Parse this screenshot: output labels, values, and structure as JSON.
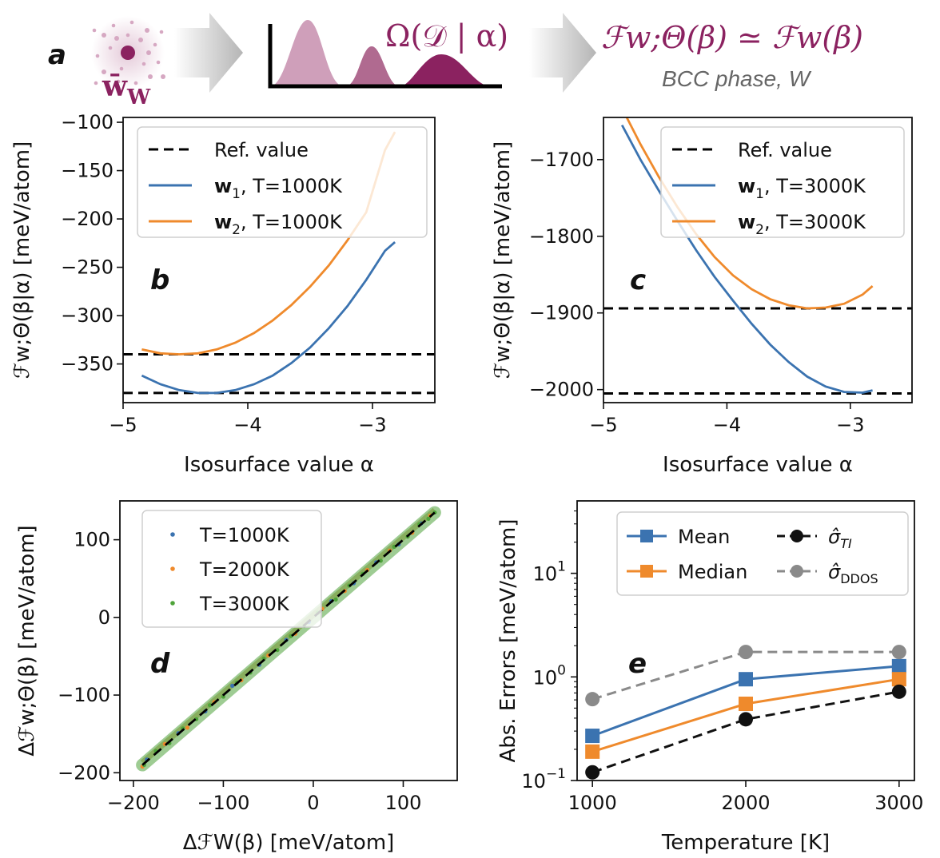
{
  "header": {
    "panel_letter": "a",
    "weights_label": "w̄",
    "weights_subscript": "W",
    "omega_label": "Ω(𝒟 | α)",
    "formula": "ℱw;Θ(β) ≃ ℱw(β)",
    "subtitle": "BCC phase, W",
    "colors": {
      "magenta": "#8b2260",
      "mid": "#b06a90",
      "light": "#cf9fba",
      "arrow": "#cccccc"
    }
  },
  "chart_data": [
    {
      "panel": "b",
      "type": "line",
      "xlabel": "Isosurface value α",
      "ylabel": "ℱw;Θ(β|α) [meV/atom]",
      "xlim": [
        -5.0,
        -2.5
      ],
      "ylim": [
        -390,
        -95
      ],
      "xticks": [
        -5,
        -4,
        -3
      ],
      "xtick_labels": [
        "−5",
        "−4",
        "−3"
      ],
      "yticks": [
        -100,
        -150,
        -200,
        -250,
        -300,
        -350
      ],
      "ytick_labels": [
        "−100",
        "−150",
        "−200",
        "−250",
        "−300",
        "−350"
      ],
      "legend": {
        "position": "top-right",
        "ref_label": "Ref. value"
      },
      "ref_values": [
        -340,
        -380
      ],
      "series": [
        {
          "name": "w1, T=1000K",
          "vector": "w",
          "sub": "1",
          "rest": ", T=1000K",
          "color": "#3b73b0",
          "x": [
            -4.85,
            -4.7,
            -4.55,
            -4.4,
            -4.25,
            -4.1,
            -3.95,
            -3.8,
            -3.65,
            -3.5,
            -3.35,
            -3.2,
            -3.05,
            -2.9,
            -2.82
          ],
          "y": [
            -362,
            -371,
            -377,
            -380,
            -380,
            -377,
            -371,
            -362,
            -349,
            -333,
            -313,
            -290,
            -263,
            -233,
            -224
          ]
        },
        {
          "name": "w2, T=1000K",
          "vector": "w",
          "sub": "2",
          "rest": ", T=1000K",
          "color": "#ef8a2c",
          "x": [
            -4.85,
            -4.7,
            -4.55,
            -4.4,
            -4.25,
            -4.1,
            -3.95,
            -3.8,
            -3.65,
            -3.5,
            -3.35,
            -3.2,
            -3.05,
            -2.9,
            -2.82
          ],
          "y": [
            -335,
            -339,
            -340,
            -339,
            -335,
            -328,
            -318,
            -305,
            -289,
            -270,
            -248,
            -222,
            -193,
            -129,
            -110
          ]
        }
      ]
    },
    {
      "panel": "c",
      "type": "line",
      "xlabel": "Isosurface value α",
      "ylabel": "ℱw;Θ(β|α) [meV/atom]",
      "xlim": [
        -5.0,
        -2.5
      ],
      "ylim": [
        -2017,
        -1645
      ],
      "xticks": [
        -5,
        -4,
        -3
      ],
      "xtick_labels": [
        "−5",
        "−4",
        "−3"
      ],
      "yticks": [
        -1700,
        -1800,
        -1900,
        -2000
      ],
      "ytick_labels": [
        "−1700",
        "−1800",
        "−1900",
        "−2000"
      ],
      "legend": {
        "position": "top-right",
        "ref_label": "Ref. value"
      },
      "ref_values": [
        -1894,
        -2005
      ],
      "series": [
        {
          "name": "w1, T=3000K",
          "vector": "w",
          "sub": "1",
          "rest": ", T=3000K",
          "color": "#3b73b0",
          "x": [
            -4.85,
            -4.7,
            -4.55,
            -4.4,
            -4.25,
            -4.1,
            -3.95,
            -3.8,
            -3.65,
            -3.5,
            -3.35,
            -3.2,
            -3.05,
            -2.9,
            -2.82
          ],
          "y": [
            -1655,
            -1700,
            -1741,
            -1780,
            -1818,
            -1853,
            -1884,
            -1914,
            -1941,
            -1964,
            -1983,
            -1996,
            -2003,
            -2004,
            -2001
          ]
        },
        {
          "name": "w2, T=3000K",
          "vector": "w",
          "sub": "2",
          "rest": ", T=3000K",
          "color": "#ef8a2c",
          "x": [
            -4.85,
            -4.7,
            -4.55,
            -4.4,
            -4.25,
            -4.1,
            -3.95,
            -3.8,
            -3.65,
            -3.5,
            -3.35,
            -3.2,
            -3.05,
            -2.9,
            -2.82
          ],
          "y": [
            -1633,
            -1680,
            -1723,
            -1762,
            -1797,
            -1827,
            -1851,
            -1869,
            -1882,
            -1890,
            -1894,
            -1893,
            -1888,
            -1876,
            -1865
          ]
        }
      ]
    },
    {
      "panel": "d",
      "type": "scatter",
      "xlabel": "ΔℱW(β) [meV/atom]",
      "ylabel": "Δℱw;Θ(β) [meV/atom]",
      "xlim": [
        -215,
        160
      ],
      "ylim": [
        -210,
        150
      ],
      "xticks": [
        -200,
        -100,
        0,
        100
      ],
      "xtick_labels": [
        "−200",
        "−100",
        "0",
        "100"
      ],
      "yticks": [
        -200,
        -100,
        0,
        100
      ],
      "ytick_labels": [
        "−200",
        "−100",
        "0",
        "100"
      ],
      "legend": {
        "position": "top-left"
      },
      "diagonal": [
        -190,
        135
      ],
      "series": [
        {
          "name": "T=1000K",
          "color": "#3b73b0",
          "points": [
            [
              -185,
              -183
            ],
            [
              -150,
              -149
            ],
            [
              -120,
              -121
            ],
            [
              -90,
              -88
            ],
            [
              -60,
              -61
            ],
            [
              -30,
              -29
            ],
            [
              -5,
              -6
            ],
            [
              20,
              21
            ],
            [
              45,
              44
            ],
            [
              70,
              71
            ],
            [
              95,
              94
            ],
            [
              120,
              121
            ]
          ]
        },
        {
          "name": "T=2000K",
          "color": "#ef8a2c",
          "points": [
            [
              -190,
              -192
            ],
            [
              -165,
              -163
            ],
            [
              -140,
              -142
            ],
            [
              -110,
              -109
            ],
            [
              -80,
              -81
            ],
            [
              -50,
              -49
            ],
            [
              -20,
              -21
            ],
            [
              10,
              11
            ],
            [
              35,
              34
            ],
            [
              60,
              61
            ],
            [
              85,
              86
            ],
            [
              110,
              109
            ],
            [
              130,
              131
            ]
          ]
        },
        {
          "name": "T=3000K",
          "color": "#4ea33a",
          "points": [
            [
              -188,
              -190
            ],
            [
              -175,
              -172
            ],
            [
              -160,
              -162
            ],
            [
              -145,
              -143
            ],
            [
              -130,
              -131
            ],
            [
              -115,
              -113
            ],
            [
              -100,
              -102
            ],
            [
              -85,
              -84
            ],
            [
              -70,
              -71
            ],
            [
              -55,
              -53
            ],
            [
              -40,
              -42
            ],
            [
              -25,
              -24
            ],
            [
              -10,
              -11
            ],
            [
              5,
              6
            ],
            [
              25,
              23
            ],
            [
              40,
              41
            ],
            [
              55,
              56
            ],
            [
              75,
              73
            ],
            [
              90,
              91
            ],
            [
              105,
              104
            ],
            [
              118,
              120
            ],
            [
              128,
              127
            ],
            [
              135,
              135
            ]
          ]
        }
      ]
    },
    {
      "panel": "e",
      "type": "line",
      "yscale": "log",
      "xlabel": "Temperature [K]",
      "ylabel": "Abs. Errors [meV/atom]",
      "xlim": [
        900,
        3100
      ],
      "ylim": [
        0.1,
        50
      ],
      "xticks": [
        1000,
        2000,
        3000
      ],
      "xtick_labels": [
        "1000",
        "2000",
        "3000"
      ],
      "yticks": [
        0.1,
        1,
        10
      ],
      "ytick_labels": [
        {
          "base": "10",
          "exp": "−1"
        },
        {
          "base": "10",
          "exp": "0"
        },
        {
          "base": "10",
          "exp": "1"
        }
      ],
      "legend": {
        "position": "top"
      },
      "x": [
        1000,
        2000,
        3000
      ],
      "series": [
        {
          "name": "Mean",
          "label": "Mean",
          "color": "#3b73b0",
          "marker": "square",
          "dashed": false,
          "values": [
            0.27,
            0.95,
            1.27
          ]
        },
        {
          "name": "Median",
          "label": "Median",
          "color": "#ef8a2c",
          "marker": "square",
          "dashed": false,
          "values": [
            0.19,
            0.55,
            0.95
          ]
        },
        {
          "name": "σ̂TI",
          "label": "σ̂",
          "sub": "TI",
          "sub_italic": true,
          "color": "#111111",
          "marker": "circle",
          "dashed": true,
          "values": [
            0.12,
            0.39,
            0.72
          ]
        },
        {
          "name": "σ̂DDOS",
          "label": "σ̂",
          "sub": "DDOS",
          "sub_italic": false,
          "color": "#8a8a8a",
          "marker": "circle",
          "dashed": true,
          "values": [
            0.61,
            1.74,
            1.74
          ]
        }
      ]
    }
  ]
}
